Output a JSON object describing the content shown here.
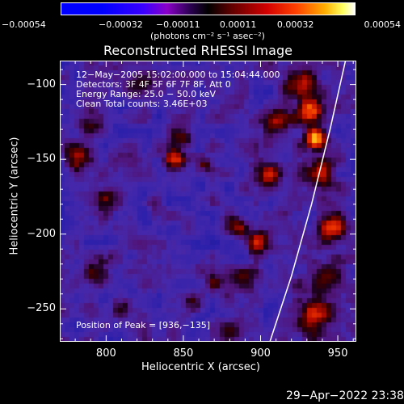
{
  "colors": {
    "background": "#000000",
    "foreground": "#ffffff",
    "limb": "#ffffff"
  },
  "chart_data": {
    "type": "heatmap",
    "title": "Reconstructed RHESSI Image",
    "xlabel": "Heliocentric X (arcsec)",
    "ylabel": "Heliocentric Y (arcsec)",
    "xlim": [
      770,
      962
    ],
    "ylim": [
      -272,
      -84
    ],
    "x_ticks": [
      {
        "value": 800,
        "label": "800"
      },
      {
        "value": 850,
        "label": "850"
      },
      {
        "value": 900,
        "label": "900"
      },
      {
        "value": 950,
        "label": "950"
      }
    ],
    "y_ticks": [
      {
        "value": -100,
        "label": "−100"
      },
      {
        "value": -150,
        "label": "−150"
      },
      {
        "value": -200,
        "label": "−200"
      },
      {
        "value": -250,
        "label": "−250"
      }
    ],
    "colorbar": {
      "range": [
        -0.00054,
        0.00054
      ],
      "ticks": [
        {
          "value": -0.00054,
          "label": "−0.00054"
        },
        {
          "value": -0.00032,
          "label": "−0.00032"
        },
        {
          "value": -0.00011,
          "label": "−0.00011"
        },
        {
          "value": 0.00011,
          "label": "0.00011"
        },
        {
          "value": 0.00032,
          "label": "0.00032"
        },
        {
          "value": 0.00054,
          "label": "0.00054"
        }
      ],
      "units": "(photons cm⁻² s⁻¹ asec⁻²)"
    },
    "info_lines": [
      "12−May−2005 15:02:00.000 to 15:04:44.000",
      "Detectors: 3F 4F 5F 6F 7F 8F, Att 0",
      "Energy Range: 25.0 − 50.0 keV",
      "Clean    Total counts: 3.46E+03"
    ],
    "peak": {
      "x": 936,
      "y": -135,
      "label": "Position of Peak = [936,−135]"
    },
    "sources": [
      {
        "x": 936,
        "y": -136,
        "sigma": 5,
        "amp": 1.0
      },
      {
        "x": 932,
        "y": -118,
        "sigma": 6,
        "amp": 0.75
      },
      {
        "x": 925,
        "y": -100,
        "sigma": 7,
        "amp": 0.65
      },
      {
        "x": 938,
        "y": -160,
        "sigma": 7,
        "amp": 0.55
      },
      {
        "x": 946,
        "y": -195,
        "sigma": 7,
        "amp": 0.6
      },
      {
        "x": 942,
        "y": -230,
        "sigma": 8,
        "amp": 0.45
      },
      {
        "x": 935,
        "y": -255,
        "sigma": 9,
        "amp": 0.55
      },
      {
        "x": 905,
        "y": -160,
        "sigma": 7,
        "amp": 0.55
      },
      {
        "x": 899,
        "y": -205,
        "sigma": 6,
        "amp": 0.55
      },
      {
        "x": 890,
        "y": -232,
        "sigma": 6,
        "amp": 0.4
      },
      {
        "x": 885,
        "y": -195,
        "sigma": 5,
        "amp": 0.4
      },
      {
        "x": 912,
        "y": -125,
        "sigma": 6,
        "amp": 0.45
      },
      {
        "x": 782,
        "y": -148,
        "sigma": 6,
        "amp": 0.45
      },
      {
        "x": 790,
        "y": -125,
        "sigma": 6,
        "amp": 0.4
      },
      {
        "x": 800,
        "y": -175,
        "sigma": 6,
        "amp": 0.3
      },
      {
        "x": 832,
        "y": -180,
        "sigma": 4,
        "amp": 0.35
      },
      {
        "x": 845,
        "y": -150,
        "sigma": 5,
        "amp": 0.55
      },
      {
        "x": 850,
        "y": -135,
        "sigma": 4,
        "amp": 0.45
      },
      {
        "x": 865,
        "y": -155,
        "sigma": 4,
        "amp": 0.35
      },
      {
        "x": 795,
        "y": -228,
        "sigma": 6,
        "amp": 0.35
      },
      {
        "x": 812,
        "y": -248,
        "sigma": 5,
        "amp": 0.3
      },
      {
        "x": 857,
        "y": -245,
        "sigma": 5,
        "amp": 0.4
      },
      {
        "x": 870,
        "y": -232,
        "sigma": 4,
        "amp": 0.3
      },
      {
        "x": 880,
        "y": -268,
        "sigma": 5,
        "amp": 0.3
      },
      {
        "x": 822,
        "y": -100,
        "sigma": 6,
        "amp": 0.25
      }
    ],
    "limb": [
      {
        "x": 955,
        "y": -84
      },
      {
        "x": 945,
        "y": -130
      },
      {
        "x": 933,
        "y": -180
      },
      {
        "x": 920,
        "y": -228
      },
      {
        "x": 906,
        "y": -272
      }
    ]
  },
  "timestamp": "29−Apr−2022 23:38"
}
